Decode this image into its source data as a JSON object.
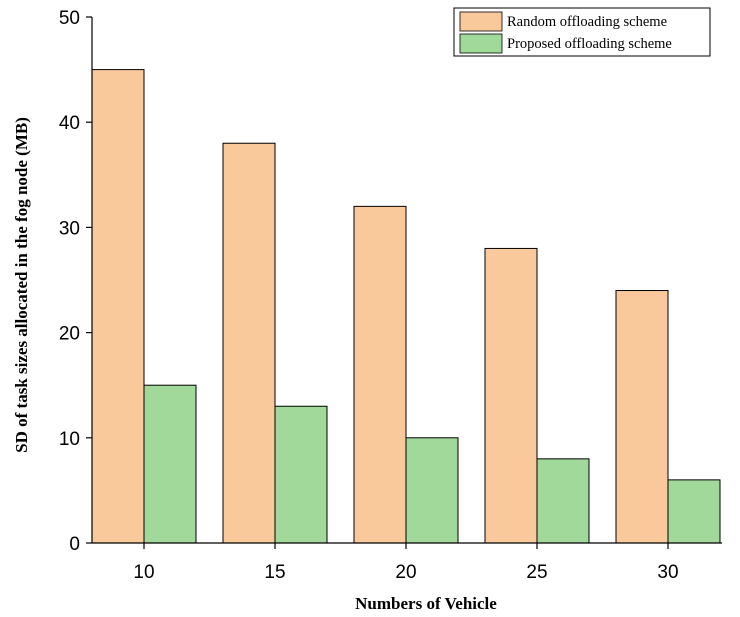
{
  "chart_data": {
    "type": "bar",
    "title": "",
    "xlabel": "Numbers of Vehicle",
    "ylabel": "SD of task sizes allocated in the fog node (MB)",
    "categories": [
      "10",
      "15",
      "20",
      "25",
      "30"
    ],
    "series": [
      {
        "name": "Random offloading scheme",
        "values": [
          45,
          38,
          32,
          28,
          24
        ],
        "color": "#f9c89b"
      },
      {
        "name": "Proposed offloading scheme",
        "values": [
          15,
          13,
          10,
          8,
          6
        ],
        "color": "#a1d99b"
      }
    ],
    "ylim": [
      0,
      50
    ],
    "yticks": [
      "0",
      "10",
      "20",
      "30",
      "40",
      "50"
    ],
    "grid": false,
    "legend": "top-right"
  }
}
